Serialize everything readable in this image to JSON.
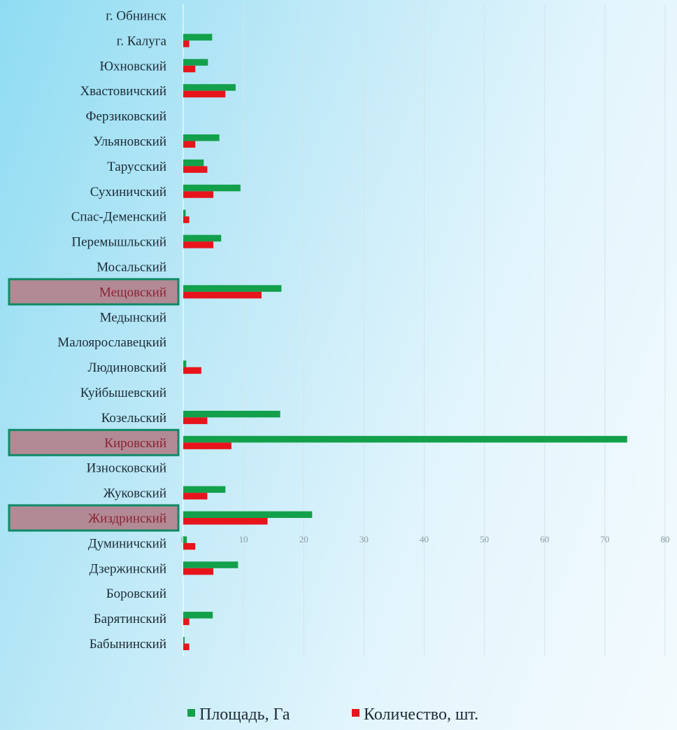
{
  "chart_data": {
    "type": "bar",
    "orientation": "horizontal",
    "categories": [
      "г. Обнинск",
      "г. Калуга",
      "Юхновский",
      "Хвастовичский",
      "Ферзиковский",
      "Ульяновский",
      "Тарусский",
      "Сухиничский",
      "Спас-Деменский",
      "Перемышльский",
      "Мосальский",
      "Мещовский",
      "Медынский",
      "Малоярославецкий",
      "Людиновский",
      "Куйбышевский",
      "Козельский",
      "Кировский",
      "Износковский",
      "Жуковский",
      "Жиздринский",
      "Думиничский",
      "Дзержинский",
      "Боровский",
      "Барятинский",
      "Бабынинский"
    ],
    "series": [
      {
        "name": "Площадь, Га",
        "color": "#13a04b",
        "values": [
          0,
          4.8,
          4.1,
          8.7,
          0,
          6.0,
          3.4,
          9.5,
          0.4,
          6.3,
          0,
          16.3,
          0,
          0,
          0.5,
          0,
          16.1,
          73.7,
          0,
          7.0,
          21.4,
          0.6,
          9.1,
          0,
          4.9,
          0.1
        ]
      },
      {
        "name": "Количество, шт.",
        "color": "#e8141c",
        "values": [
          0,
          1,
          2,
          7,
          0,
          2,
          4,
          5,
          1,
          5,
          0,
          13,
          0,
          0,
          3,
          0,
          4,
          8,
          0,
          4,
          14,
          2,
          5,
          0,
          1,
          1
        ]
      }
    ],
    "xlim": [
      0,
      80
    ],
    "xticks": [
      "0",
      "10",
      "20",
      "30",
      "40",
      "50",
      "60",
      "70",
      "80"
    ],
    "grid": "vertical",
    "legend_position": "bottom",
    "highlighted_categories": [
      "Мещовский",
      "Кировский",
      "Жиздринский"
    ],
    "highlight_color": "#b28a95",
    "highlight_border": "#0f8a66"
  }
}
